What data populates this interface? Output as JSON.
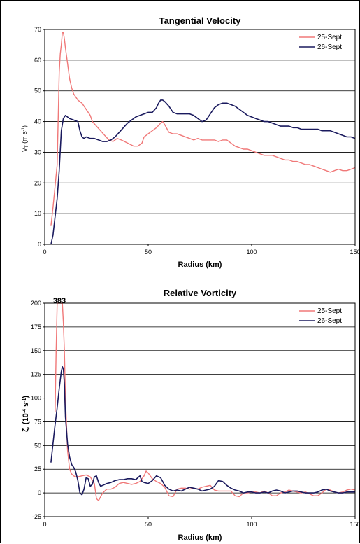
{
  "chart_data": [
    {
      "type": "line",
      "title": "Tangential Velocity",
      "xlabel": "Radius (km)",
      "ylabel": "V_T (m s^-1)",
      "ylabel_main": "V",
      "ylabel_sub": "T",
      "ylabel_unit": " (m s",
      "ylabel_exp": "-1",
      "ylabel_close": ")",
      "xlim": [
        0,
        150
      ],
      "ylim": [
        0,
        70
      ],
      "xticks": [
        0,
        50,
        100,
        150
      ],
      "yticks": [
        0,
        10,
        20,
        30,
        40,
        50,
        60,
        70
      ],
      "grid": "horizontal",
      "legend": "top-right",
      "series": [
        {
          "name": "25-Sept",
          "color": "#f07878",
          "x": [
            3,
            4,
            5,
            6,
            7,
            7.5,
            8,
            8.5,
            9,
            9.5,
            10,
            11,
            12,
            13,
            14,
            15,
            16,
            18,
            20,
            22,
            23,
            25,
            27,
            29,
            31,
            33,
            35,
            37,
            40,
            43,
            45,
            47,
            48,
            50,
            52,
            54,
            56,
            57,
            58,
            60,
            62,
            64,
            66,
            68,
            70,
            72,
            74,
            76,
            78,
            80,
            82,
            84,
            86,
            88,
            90,
            92,
            94,
            96,
            98,
            100,
            102,
            104,
            106,
            108,
            110,
            112,
            114,
            116,
            118,
            120,
            122,
            124,
            126,
            128,
            130,
            132,
            134,
            136,
            138,
            140,
            142,
            144,
            146,
            148,
            150
          ],
          "values": [
            6,
            12,
            19,
            26,
            56,
            62,
            65,
            69,
            69,
            67,
            64,
            59,
            54,
            51,
            49,
            48,
            47,
            46,
            44,
            42,
            40,
            38.5,
            37,
            35.5,
            34,
            33.5,
            34.5,
            34,
            33,
            32,
            32,
            33,
            35,
            36,
            37,
            38,
            39.5,
            40,
            39,
            36.5,
            36,
            36,
            35.5,
            35,
            34.5,
            34,
            34.5,
            34,
            34,
            34,
            34,
            33.5,
            34,
            34,
            33,
            32,
            31.5,
            31,
            31,
            30.5,
            30,
            29.5,
            29,
            29,
            29,
            28.5,
            28,
            27.5,
            27.5,
            27,
            27,
            26.5,
            26,
            26,
            25.5,
            25,
            24.5,
            24,
            23.5,
            24,
            24.5,
            24,
            24,
            24.5,
            25
          ]
        },
        {
          "name": "26-Sept",
          "color": "#1a1a5e",
          "x": [
            3,
            4,
            5,
            6,
            7,
            8,
            9,
            10,
            11,
            12,
            14,
            16,
            17,
            18,
            19,
            20,
            22,
            24,
            26,
            28,
            30,
            32,
            34,
            36,
            38,
            40,
            42,
            44,
            46,
            48,
            50,
            52,
            54,
            55,
            56,
            57,
            58,
            60,
            62,
            64,
            66,
            68,
            70,
            72,
            74,
            76,
            78,
            80,
            82,
            84,
            86,
            88,
            90,
            92,
            94,
            96,
            98,
            100,
            102,
            104,
            106,
            108,
            110,
            112,
            114,
            116,
            118,
            120,
            122,
            124,
            126,
            128,
            130,
            132,
            134,
            136,
            138,
            140,
            142,
            144,
            146,
            148,
            150
          ],
          "values": [
            0,
            3,
            9,
            15,
            24,
            37,
            41,
            42,
            41.5,
            41,
            40.5,
            40,
            37,
            35,
            34.5,
            35,
            34.5,
            34.5,
            34,
            33.5,
            33.5,
            34,
            35,
            36.5,
            38,
            39.5,
            40.5,
            41.5,
            42,
            42.5,
            43,
            43,
            44.5,
            46,
            47,
            47,
            46.5,
            45,
            43,
            42.5,
            42.5,
            42.5,
            42.5,
            42,
            41,
            40,
            40.5,
            42.5,
            44.5,
            45.5,
            46,
            46,
            45.5,
            45,
            44,
            43,
            42,
            41.5,
            41,
            40.5,
            40,
            40,
            39.5,
            39,
            38.5,
            38.5,
            38.5,
            38,
            38,
            37.5,
            37.5,
            37.5,
            37.5,
            37.5,
            37,
            37,
            37,
            36.5,
            36,
            35.5,
            35,
            35,
            34.5
          ]
        }
      ]
    },
    {
      "type": "line",
      "title": "Relative Vorticity",
      "xlabel": "Radius (km)",
      "ylabel": "ζ_r (10^-4 s^-1)",
      "ylabel_main": "ζ",
      "ylabel_sub": "r",
      "ylabel_unit": " (10",
      "ylabel_exp": "-4",
      "ylabel_unit2": " s",
      "ylabel_exp2": "-1",
      "ylabel_close": ")",
      "xlim": [
        0,
        150
      ],
      "ylim": [
        -25,
        200
      ],
      "xticks": [
        0,
        50,
        100,
        150
      ],
      "yticks": [
        -25,
        0,
        25,
        50,
        75,
        100,
        125,
        150,
        175,
        200
      ],
      "grid": "horizontal",
      "legend": "top-right",
      "annotation": {
        "text": "383",
        "x": 7,
        "y": 200
      },
      "series": [
        {
          "name": "25-Sept",
          "color": "#f07878",
          "x": [
            5,
            5.5,
            6,
            6.5,
            7,
            7.5,
            8,
            8.5,
            9,
            9.5,
            10,
            11,
            12,
            13,
            14,
            15,
            16,
            18,
            20,
            22,
            24,
            25,
            26,
            28,
            30,
            32,
            34,
            36,
            38,
            40,
            42,
            44,
            46,
            48,
            49,
            50,
            52,
            54,
            56,
            58,
            60,
            62,
            64,
            66,
            68,
            70,
            72,
            74,
            76,
            78,
            80,
            82,
            84,
            86,
            88,
            90,
            92,
            94,
            96,
            98,
            100,
            102,
            104,
            106,
            108,
            110,
            112,
            114,
            116,
            118,
            120,
            122,
            124,
            126,
            128,
            130,
            132,
            134,
            136,
            138,
            140,
            142,
            144,
            146,
            148,
            150
          ],
          "values": [
            85,
            150,
            200,
            200,
            200,
            200,
            200,
            200,
            180,
            150,
            100,
            45,
            25,
            20,
            18,
            17,
            17,
            18,
            19,
            17,
            10,
            -6,
            -8,
            0,
            4,
            4,
            6,
            10,
            11,
            10,
            9,
            10,
            12,
            18,
            23,
            21,
            15,
            12,
            10,
            6,
            -3,
            -4,
            4,
            5,
            5,
            4,
            5,
            4,
            6,
            7,
            8,
            3,
            2,
            2,
            2,
            2,
            -3,
            -4,
            0,
            0,
            1,
            1,
            0,
            2,
            0,
            -3,
            -3,
            0,
            1,
            3,
            2,
            1,
            0,
            1,
            -1,
            -3,
            -3,
            0,
            4,
            3,
            1,
            0,
            1,
            3,
            4,
            3
          ]
        },
        {
          "name": "26-Sept",
          "color": "#1a1a5e",
          "x": [
            3,
            4,
            5,
            6,
            7,
            8,
            8.5,
            9,
            9.5,
            10,
            11,
            12,
            13,
            14,
            15,
            16,
            17,
            18,
            19,
            20,
            21,
            22,
            23,
            24,
            25,
            26,
            27,
            28,
            30,
            32,
            34,
            36,
            38,
            40,
            42,
            44,
            45,
            46,
            47,
            48,
            50,
            52,
            54,
            56,
            58,
            60,
            62,
            64,
            66,
            68,
            70,
            72,
            74,
            76,
            78,
            80,
            82,
            84,
            86,
            88,
            90,
            92,
            94,
            96,
            98,
            100,
            102,
            104,
            106,
            108,
            110,
            112,
            114,
            116,
            118,
            120,
            122,
            124,
            126,
            128,
            130,
            132,
            134,
            136,
            138,
            140,
            142,
            144,
            146,
            148,
            150
          ],
          "values": [
            32,
            52,
            72,
            90,
            110,
            128,
            133,
            131,
            115,
            80,
            52,
            38,
            30,
            27,
            22,
            13,
            0,
            -2,
            4,
            16,
            15,
            7,
            9,
            17,
            18,
            11,
            7,
            8,
            10,
            11,
            13,
            14,
            14,
            15,
            15,
            14,
            16,
            18,
            12,
            11,
            10,
            13,
            18,
            16,
            8,
            4,
            2,
            3,
            2,
            4,
            6,
            5,
            4,
            2,
            3,
            4,
            7,
            13,
            12,
            8,
            5,
            3,
            2,
            0,
            1,
            1,
            0,
            0,
            1,
            0,
            2,
            3,
            2,
            0,
            1,
            2,
            2,
            1,
            0,
            0,
            0,
            1,
            3,
            4,
            2,
            1,
            0,
            0,
            1,
            1,
            1
          ]
        }
      ]
    }
  ]
}
